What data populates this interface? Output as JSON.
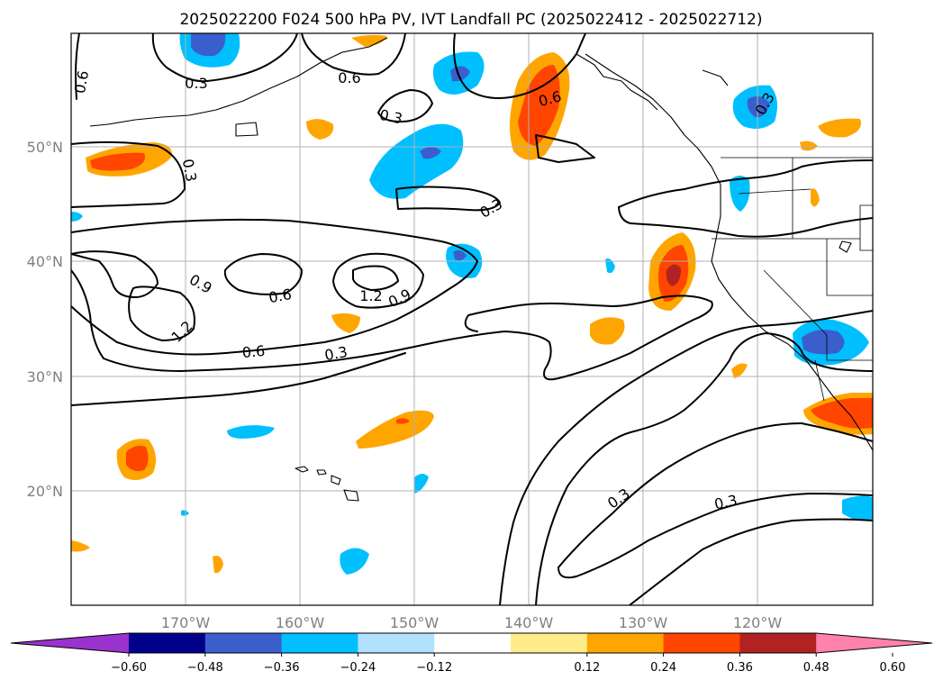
{
  "title": "2025022200 F024 500 hPa PV, IVT Landfall PC (2025022412 - 2025022712)",
  "longitude_ticks": [
    "170°W",
    "160°W",
    "150°W",
    "140°W",
    "130°W",
    "120°W"
  ],
  "latitude_ticks": [
    "50°N",
    "40°N",
    "30°N",
    "20°N"
  ],
  "colorbar": {
    "tick_labels": [
      "−0.60",
      "−0.48",
      "−0.36",
      "−0.24",
      "−0.12",
      "0.12",
      "0.24",
      "0.36",
      "0.48",
      "0.60"
    ],
    "colors": [
      "#9a32cd",
      "#00008b",
      "#3a5fcd",
      "#00bfff",
      "#b0e2ff",
      "#ffffff",
      "#ffec8b",
      "#ffa500",
      "#ff4500",
      "#b22222",
      "#ff82ab"
    ]
  },
  "contour_labels": [
    "0.6",
    "0.3",
    "0.6",
    "0.3",
    "0.6",
    "0.3",
    "0.3",
    "0.3",
    "0.9",
    "0.6",
    "1.2",
    "0.9",
    "1.2",
    "0.6",
    "0.3",
    "0.3",
    "0.3",
    "0.3"
  ]
}
